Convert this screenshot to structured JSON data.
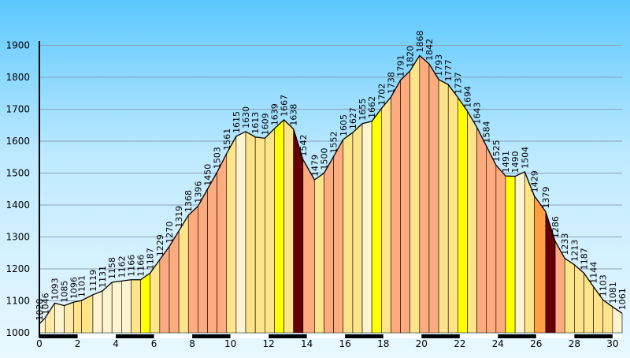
{
  "chart_data": {
    "type": "area",
    "title": "",
    "xlabel": "",
    "ylabel": "",
    "xlim": [
      0,
      30.5
    ],
    "ylim": [
      1000,
      1950
    ],
    "x_ticks": [
      "0",
      "2",
      "4",
      "6",
      "8",
      "10",
      "12",
      "14",
      "16",
      "18",
      "20",
      "22",
      "24",
      "26",
      "28",
      "30"
    ],
    "y_ticks": [
      "1000",
      "1100",
      "1200",
      "1300",
      "1400",
      "1500",
      "1600",
      "1700",
      "1800",
      "1900"
    ],
    "grid": true,
    "points": [
      {
        "x": 0.0,
        "y": 1028
      },
      {
        "x": 0.3,
        "y": 1046
      },
      {
        "x": 0.8,
        "y": 1093
      },
      {
        "x": 1.3,
        "y": 1085
      },
      {
        "x": 1.8,
        "y": 1096
      },
      {
        "x": 2.2,
        "y": 1101
      },
      {
        "x": 2.8,
        "y": 1119
      },
      {
        "x": 3.3,
        "y": 1131
      },
      {
        "x": 3.8,
        "y": 1158
      },
      {
        "x": 4.3,
        "y": 1162
      },
      {
        "x": 4.8,
        "y": 1166
      },
      {
        "x": 5.3,
        "y": 1166
      },
      {
        "x": 5.8,
        "y": 1187
      },
      {
        "x": 6.3,
        "y": 1229
      },
      {
        "x": 6.8,
        "y": 1270
      },
      {
        "x": 7.3,
        "y": 1319
      },
      {
        "x": 7.8,
        "y": 1368
      },
      {
        "x": 8.3,
        "y": 1396
      },
      {
        "x": 8.8,
        "y": 1450
      },
      {
        "x": 9.3,
        "y": 1503
      },
      {
        "x": 9.8,
        "y": 1561
      },
      {
        "x": 10.3,
        "y": 1615
      },
      {
        "x": 10.8,
        "y": 1630
      },
      {
        "x": 11.3,
        "y": 1613
      },
      {
        "x": 11.8,
        "y": 1609
      },
      {
        "x": 12.3,
        "y": 1639
      },
      {
        "x": 12.8,
        "y": 1667
      },
      {
        "x": 13.3,
        "y": 1638
      },
      {
        "x": 13.8,
        "y": 1542
      },
      {
        "x": 14.4,
        "y": 1479
      },
      {
        "x": 14.9,
        "y": 1500
      },
      {
        "x": 15.4,
        "y": 1552
      },
      {
        "x": 15.9,
        "y": 1605
      },
      {
        "x": 16.4,
        "y": 1627
      },
      {
        "x": 16.9,
        "y": 1655
      },
      {
        "x": 17.4,
        "y": 1662
      },
      {
        "x": 17.9,
        "y": 1702
      },
      {
        "x": 18.4,
        "y": 1738
      },
      {
        "x": 18.9,
        "y": 1791
      },
      {
        "x": 19.4,
        "y": 1820
      },
      {
        "x": 19.9,
        "y": 1868
      },
      {
        "x": 20.4,
        "y": 1842
      },
      {
        "x": 20.9,
        "y": 1793
      },
      {
        "x": 21.4,
        "y": 1777
      },
      {
        "x": 21.9,
        "y": 1737
      },
      {
        "x": 22.4,
        "y": 1694
      },
      {
        "x": 22.9,
        "y": 1643
      },
      {
        "x": 23.4,
        "y": 1584
      },
      {
        "x": 23.9,
        "y": 1525
      },
      {
        "x": 24.4,
        "y": 1491
      },
      {
        "x": 24.9,
        "y": 1490
      },
      {
        "x": 25.4,
        "y": 1504
      },
      {
        "x": 25.9,
        "y": 1429
      },
      {
        "x": 26.5,
        "y": 1379
      },
      {
        "x": 27.0,
        "y": 1286
      },
      {
        "x": 27.5,
        "y": 1233
      },
      {
        "x": 28.0,
        "y": 1213
      },
      {
        "x": 28.5,
        "y": 1187
      },
      {
        "x": 29.0,
        "y": 1144
      },
      {
        "x": 29.5,
        "y": 1103
      },
      {
        "x": 30.0,
        "y": 1081
      },
      {
        "x": 30.5,
        "y": 1061
      }
    ],
    "segment_colors": [
      "#fff2cc",
      "#ffeaa8",
      "#fff4d0",
      "#ffeaa8",
      "#ffe48a",
      "#ffe48a",
      "#fff4d0",
      "#fff4d0",
      "#fff4d0",
      "#fff4d0",
      "#ffe48a",
      "#ffff00",
      "#ffe48a",
      "#ffab80",
      "#ffab80",
      "#ffe48a",
      "#ffab80",
      "#ffab80",
      "#ffab80",
      "#ffab80",
      "#ffe48a",
      "#fff4d0",
      "#ffe48a",
      "#ffe48a",
      "#ffe48a",
      "#ffff00",
      "#ffe48a",
      "#660000",
      "#ffab80",
      "#ffe48a",
      "#ffab80",
      "#ffab80",
      "#ffe48a",
      "#ffe48a",
      "#fff4d0",
      "#ffff00",
      "#ffe48a",
      "#ffab80",
      "#ffab80",
      "#ffe48a",
      "#ffab80",
      "#ffab80",
      "#ffe48a",
      "#ffe48a",
      "#ffff00",
      "#ffe48a",
      "#ffab80",
      "#ffab80",
      "#ffab80",
      "#ffff00",
      "#fff4d0",
      "#ffe48a",
      "#ffa040",
      "#660000",
      "#ffab80",
      "#ffe48a",
      "#ffe48a",
      "#ffe48a",
      "#ffe48a",
      "#ffe48a",
      "#fff4d0"
    ],
    "axis_bar_segments": [
      [
        0,
        2
      ],
      [
        4,
        6
      ],
      [
        8,
        10
      ],
      [
        12,
        14
      ],
      [
        16,
        18
      ],
      [
        20,
        22
      ],
      [
        24,
        26
      ],
      [
        28,
        30
      ]
    ],
    "colors": {
      "outline": "#000000",
      "grid": "#8ca0b4",
      "axis_bar": "#000000"
    }
  }
}
